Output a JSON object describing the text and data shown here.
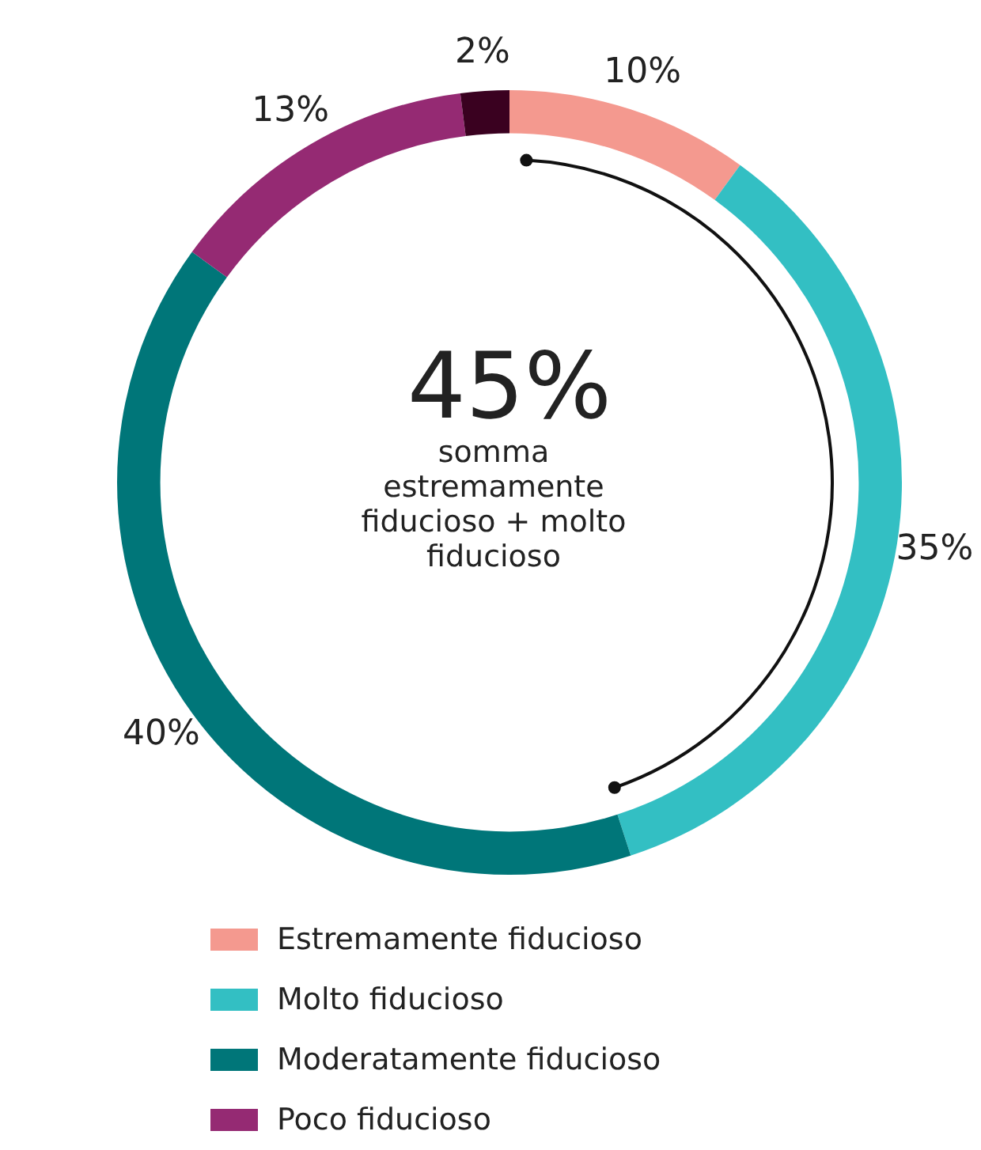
{
  "chart_data": {
    "type": "donut",
    "categories": [
      "Estremamente fiducioso",
      "Molto fiducioso",
      "Moderatamente fiducioso",
      "Poco fiducioso",
      null
    ],
    "values": [
      10,
      35,
      40,
      13,
      2
    ],
    "colors": [
      "#f4998f",
      "#33bfc3",
      "#007679",
      "#952a73",
      "#3a0120"
    ],
    "value_labels": [
      "10%",
      "35%",
      "40%",
      "13%",
      "2%"
    ],
    "annotations": [
      "45%",
      "somma estremamente fiducioso + molto fiducioso"
    ],
    "legend": "bottom"
  }
}
